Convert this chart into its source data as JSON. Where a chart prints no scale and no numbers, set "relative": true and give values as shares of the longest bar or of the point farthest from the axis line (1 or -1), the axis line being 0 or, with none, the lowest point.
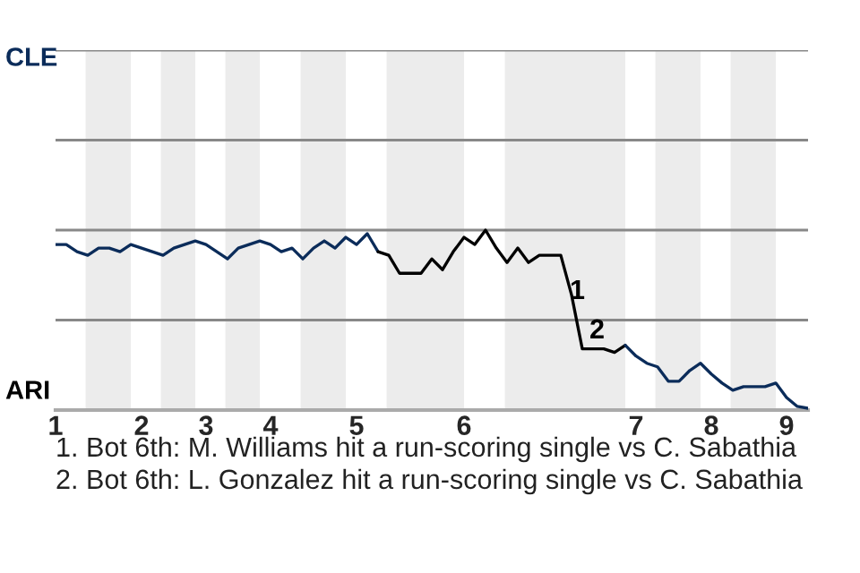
{
  "chart_data": {
    "type": "line",
    "relative": true,
    "categories": [
      "1",
      null,
      null,
      null,
      null,
      null,
      null,
      null,
      "2",
      null,
      null,
      null,
      null,
      null,
      "3",
      null,
      null,
      null,
      null,
      null,
      "4",
      null,
      null,
      null,
      null,
      null,
      null,
      null,
      "5",
      null,
      null,
      null,
      null,
      null,
      null,
      null,
      null,
      null,
      "6",
      null,
      null,
      null,
      null,
      null,
      null,
      null,
      null,
      null,
      null,
      null,
      null,
      null,
      null,
      null,
      "7",
      null,
      null,
      null,
      null,
      null,
      null,
      "8",
      null,
      null,
      null,
      null,
      null,
      null,
      "9",
      null,
      null
    ],
    "series": [
      {
        "color": "#0b2c5a",
        "values": [
          0.92,
          0.92,
          0.88,
          0.86,
          0.9,
          0.9,
          0.88,
          0.92,
          0.9,
          0.88,
          0.86,
          0.9,
          0.92,
          0.94,
          0.92,
          0.88,
          0.84,
          0.9,
          0.92,
          0.94,
          0.92,
          0.88,
          0.9,
          0.84,
          0.9,
          0.94,
          0.9,
          0.96,
          0.92,
          0.98,
          0.88,
          null,
          null,
          null,
          null,
          null,
          null,
          null,
          null,
          null,
          null,
          null,
          null,
          null,
          null,
          null,
          null,
          null,
          null,
          null,
          null,
          null,
          null,
          null,
          null,
          null,
          null,
          null,
          null,
          null,
          null,
          null,
          null,
          null,
          null,
          null,
          null,
          null,
          null,
          null,
          null
        ]
      },
      {
        "color": "#000000",
        "values": [
          null,
          null,
          null,
          null,
          null,
          null,
          null,
          null,
          null,
          null,
          null,
          null,
          null,
          null,
          null,
          null,
          null,
          null,
          null,
          null,
          null,
          null,
          null,
          null,
          null,
          null,
          null,
          null,
          null,
          null,
          0.88,
          0.86,
          0.76,
          0.76,
          0.76,
          0.84,
          0.78,
          0.88,
          0.96,
          0.92,
          1,
          0.9,
          0.82,
          0.9,
          0.82,
          0.86,
          0.86,
          0.86,
          0.64,
          0.34,
          0.34,
          0.34,
          0.32,
          0.36,
          null,
          null,
          null,
          null,
          null,
          null,
          null,
          null,
          null,
          null,
          null,
          null,
          null,
          null,
          null,
          null,
          null
        ]
      },
      {
        "color": "#0b2c5a",
        "values": [
          null,
          null,
          null,
          null,
          null,
          null,
          null,
          null,
          null,
          null,
          null,
          null,
          null,
          null,
          null,
          null,
          null,
          null,
          null,
          null,
          null,
          null,
          null,
          null,
          null,
          null,
          null,
          null,
          null,
          null,
          null,
          null,
          null,
          null,
          null,
          null,
          null,
          null,
          null,
          null,
          null,
          null,
          null,
          null,
          null,
          null,
          null,
          null,
          null,
          null,
          null,
          null,
          null,
          0.36,
          0.3,
          0.26,
          0.24,
          0.16,
          0.16,
          0.22,
          0.26,
          0.2,
          0.15,
          0.11,
          0.13,
          0.13,
          0.13,
          0.15,
          0.07,
          0.02,
          0.01
        ]
      }
    ],
    "ref_lines": [
      {
        "axis": "y",
        "value": 0.5,
        "color": "#888888"
      },
      {
        "axis": "y",
        "value": 1.0,
        "color": "#888888"
      },
      {
        "axis": "y",
        "value": 1.5,
        "color": "#888888"
      },
      {
        "axis": "y",
        "value": 2.0,
        "color": "#888888"
      }
    ],
    "annotations": [
      "CLE",
      "ARI",
      "1",
      "2",
      "1. Bot 6th: M. Williams hit a run-scoring single vs C. Sabathia",
      "2. Bot 6th: L. Gonzalez hit a run-scoring single vs C. Sabathia"
    ]
  }
}
